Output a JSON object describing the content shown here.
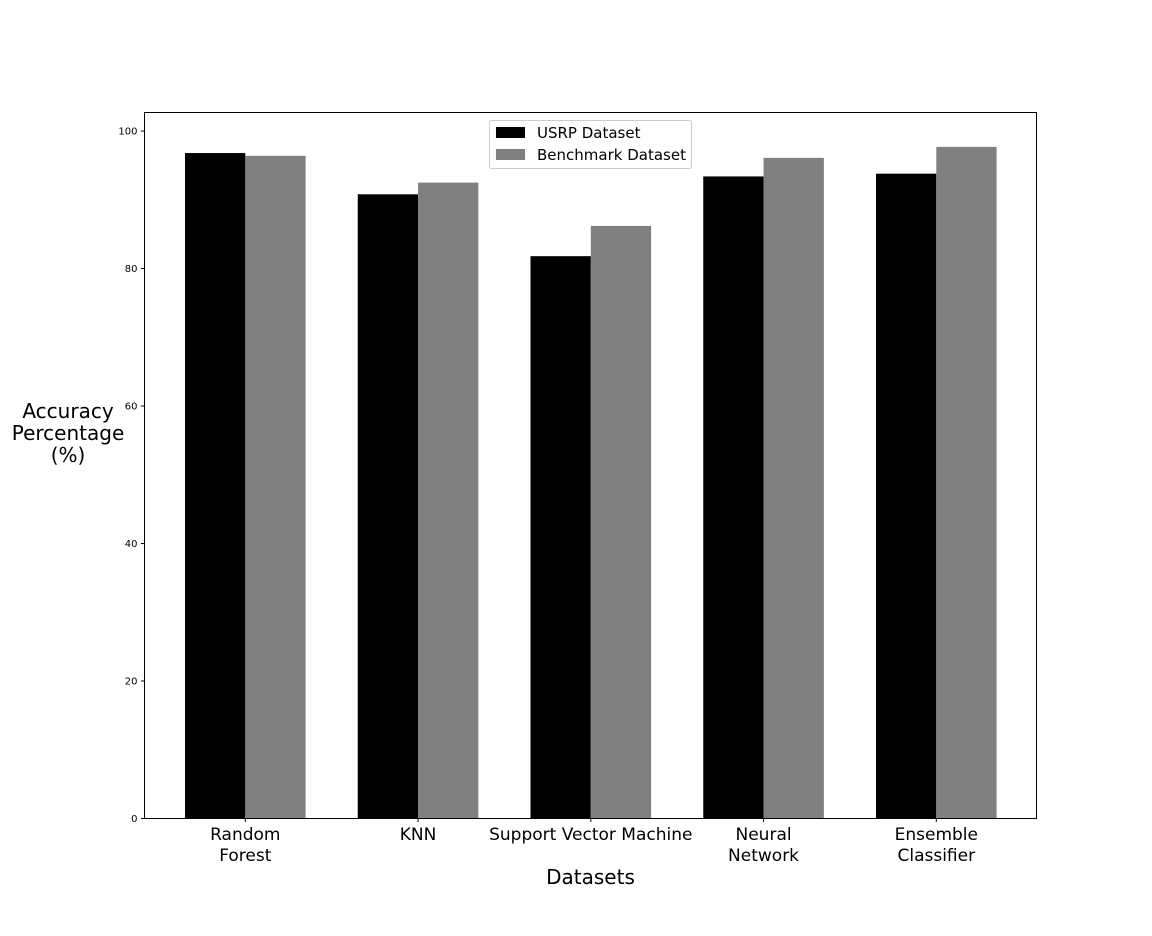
{
  "chart_data": {
    "type": "bar",
    "title": "",
    "xlabel": "Datasets",
    "ylabel_lines": [
      "Accuracy",
      "Percentage",
      "(%)"
    ],
    "categories": [
      [
        "Random",
        "Forest"
      ],
      [
        "KNN"
      ],
      [
        "Support Vector Machine"
      ],
      [
        "Neural",
        "Network"
      ],
      [
        "Ensemble",
        "Classifier"
      ]
    ],
    "series": [
      {
        "name": "USRP Dataset",
        "color": "#000000",
        "values": [
          96.8,
          90.8,
          81.8,
          93.4,
          93.8
        ]
      },
      {
        "name": "Benchmark Dataset",
        "color": "#808080",
        "values": [
          96.4,
          92.5,
          86.2,
          96.1,
          97.7
        ]
      }
    ],
    "ylim": [
      0,
      102.7
    ],
    "yticks": [
      0,
      20,
      40,
      60,
      80,
      100
    ],
    "grid": false,
    "legend_position": "top-center"
  }
}
